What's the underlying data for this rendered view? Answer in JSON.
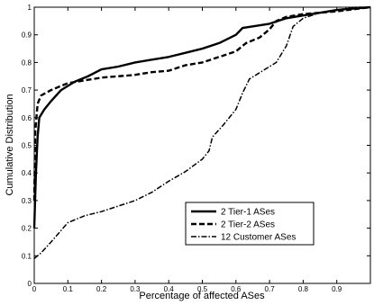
{
  "chart_data": {
    "type": "line",
    "title": "",
    "xlabel": "Percentage of affected ASes",
    "ylabel": "Cumulative Distribution",
    "xlim": [
      0,
      1
    ],
    "ylim": [
      0,
      1
    ],
    "xticks": [
      {
        "value": 0,
        "label": "0"
      },
      {
        "value": 0.1,
        "label": "0.1"
      },
      {
        "value": 0.2,
        "label": "0.2"
      },
      {
        "value": 0.3,
        "label": "0.3"
      },
      {
        "value": 0.4,
        "label": "0.4"
      },
      {
        "value": 0.5,
        "label": "0.5"
      },
      {
        "value": 0.6,
        "label": "0.6"
      },
      {
        "value": 0.7,
        "label": "0.7"
      },
      {
        "value": 0.8,
        "label": "0.8"
      },
      {
        "value": 0.9,
        "label": "0.9"
      }
    ],
    "yticks": [
      {
        "value": 0,
        "label": "0"
      },
      {
        "value": 0.1,
        "label": "0.1"
      },
      {
        "value": 0.2,
        "label": "0.2"
      },
      {
        "value": 0.3,
        "label": "0.3"
      },
      {
        "value": 0.4,
        "label": "0.4"
      },
      {
        "value": 0.5,
        "label": "0.5"
      },
      {
        "value": 0.6,
        "label": "0.6"
      },
      {
        "value": 0.7,
        "label": "0.7"
      },
      {
        "value": 0.8,
        "label": "0.8"
      },
      {
        "value": 0.9,
        "label": "0.9"
      },
      {
        "value": 1,
        "label": "1"
      }
    ],
    "grid": false,
    "legend_position": "lower-right",
    "series": [
      {
        "name": "2 Tier-1 ASes",
        "style": "solid",
        "points": [
          [
            0,
            0.2
          ],
          [
            0.005,
            0.4
          ],
          [
            0.01,
            0.53
          ],
          [
            0.015,
            0.6
          ],
          [
            0.03,
            0.63
          ],
          [
            0.05,
            0.66
          ],
          [
            0.08,
            0.7
          ],
          [
            0.12,
            0.73
          ],
          [
            0.16,
            0.75
          ],
          [
            0.2,
            0.775
          ],
          [
            0.25,
            0.785
          ],
          [
            0.3,
            0.8
          ],
          [
            0.35,
            0.81
          ],
          [
            0.4,
            0.82
          ],
          [
            0.45,
            0.835
          ],
          [
            0.5,
            0.85
          ],
          [
            0.55,
            0.87
          ],
          [
            0.6,
            0.9
          ],
          [
            0.62,
            0.925
          ],
          [
            0.7,
            0.94
          ],
          [
            0.75,
            0.96
          ],
          [
            0.8,
            0.97
          ],
          [
            0.85,
            0.98
          ],
          [
            0.9,
            0.99
          ],
          [
            1,
            1
          ]
        ]
      },
      {
        "name": "2 Tier-2 ASes",
        "style": "dashed",
        "points": [
          [
            0,
            0.3
          ],
          [
            0.003,
            0.55
          ],
          [
            0.01,
            0.65
          ],
          [
            0.02,
            0.68
          ],
          [
            0.05,
            0.7
          ],
          [
            0.08,
            0.715
          ],
          [
            0.1,
            0.725
          ],
          [
            0.15,
            0.735
          ],
          [
            0.2,
            0.745
          ],
          [
            0.3,
            0.755
          ],
          [
            0.35,
            0.765
          ],
          [
            0.4,
            0.77
          ],
          [
            0.45,
            0.79
          ],
          [
            0.5,
            0.8
          ],
          [
            0.55,
            0.82
          ],
          [
            0.6,
            0.84
          ],
          [
            0.63,
            0.87
          ],
          [
            0.67,
            0.89
          ],
          [
            0.7,
            0.92
          ],
          [
            0.72,
            0.95
          ],
          [
            0.75,
            0.965
          ],
          [
            0.8,
            0.975
          ],
          [
            0.9,
            0.985
          ],
          [
            1,
            1
          ]
        ]
      },
      {
        "name": "12 Customer ASes",
        "style": "dashdot",
        "points": [
          [
            0,
            0.09
          ],
          [
            0.02,
            0.11
          ],
          [
            0.05,
            0.15
          ],
          [
            0.1,
            0.22
          ],
          [
            0.15,
            0.245
          ],
          [
            0.2,
            0.26
          ],
          [
            0.25,
            0.28
          ],
          [
            0.3,
            0.3
          ],
          [
            0.35,
            0.33
          ],
          [
            0.4,
            0.37
          ],
          [
            0.45,
            0.405
          ],
          [
            0.5,
            0.45
          ],
          [
            0.52,
            0.48
          ],
          [
            0.53,
            0.53
          ],
          [
            0.56,
            0.57
          ],
          [
            0.6,
            0.63
          ],
          [
            0.62,
            0.69
          ],
          [
            0.64,
            0.74
          ],
          [
            0.68,
            0.77
          ],
          [
            0.72,
            0.8
          ],
          [
            0.75,
            0.86
          ],
          [
            0.77,
            0.93
          ],
          [
            0.8,
            0.96
          ],
          [
            0.85,
            0.98
          ],
          [
            0.9,
            0.99
          ],
          [
            0.95,
            1
          ],
          [
            1,
            1
          ]
        ]
      }
    ]
  }
}
